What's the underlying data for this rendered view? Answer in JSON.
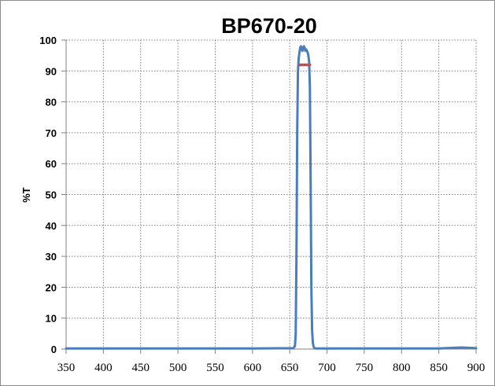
{
  "chart_data": {
    "type": "line",
    "title": "BP670-20",
    "xlabel": "",
    "ylabel": "%T",
    "xlim": [
      350,
      900
    ],
    "ylim": [
      0,
      100
    ],
    "x_ticks": [
      "350",
      "400",
      "450",
      "500",
      "550",
      "600",
      "650",
      "700",
      "750",
      "800",
      "850",
      "900"
    ],
    "y_ticks": [
      "0",
      "10",
      "20",
      "30",
      "40",
      "50",
      "60",
      "70",
      "80",
      "90",
      "100"
    ],
    "grid": true,
    "grid_style": "dotted",
    "legend": false,
    "series": [
      {
        "color": "#4a7ebb",
        "x": [
          350,
          600,
          655,
          657,
          658,
          659,
          660,
          661,
          662,
          663,
          664,
          665,
          666,
          667,
          668,
          669,
          670,
          671,
          672,
          673,
          674,
          675,
          676,
          677,
          678,
          679,
          680,
          681,
          682,
          683,
          685,
          700,
          800,
          850,
          880,
          900
        ],
        "y": [
          0.2,
          0.2,
          0.3,
          1,
          5,
          30,
          70,
          90,
          94,
          96,
          97.5,
          98,
          97.5,
          96.5,
          97.5,
          98,
          97.5,
          96.5,
          97,
          96.5,
          96,
          95,
          93,
          85,
          55,
          20,
          6,
          2,
          0.8,
          0.3,
          0.2,
          0.2,
          0.2,
          0.2,
          0.5,
          0.3
        ]
      },
      {
        "color": "#c0504d",
        "x": [
          663,
          677
        ],
        "y": [
          92,
          92
        ]
      }
    ]
  }
}
